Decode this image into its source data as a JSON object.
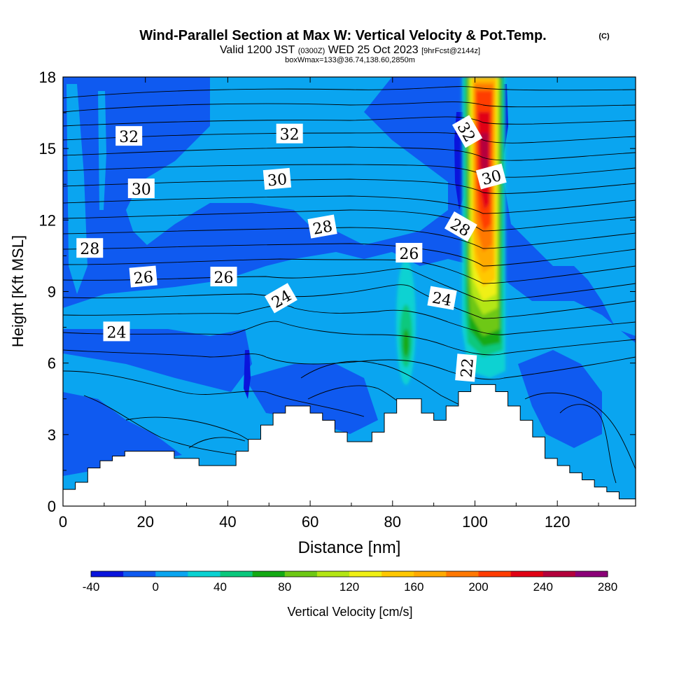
{
  "header": {
    "title": "Wind-Parallel Section at Max W: Vertical Velocity & Pot.Temp.",
    "copyright": "(C)",
    "valid_prefix": "Valid 1200 JST",
    "valid_utc": "(0300Z)",
    "valid_date": "WED 25 Oct 2023",
    "forecast": "[9hrFcst@2144z]",
    "box_info": "boxWmax=133@36.74,138.60,2850m"
  },
  "chart_data": {
    "type": "heatmap",
    "title": "Wind-Parallel Section at Max W: Vertical Velocity & Pot.Temp.",
    "xlabel": "Distance [nm]",
    "ylabel": "Height [Kft MSL]",
    "xlim": [
      0,
      139
    ],
    "ylim": [
      0,
      18
    ],
    "xticks": [
      "0",
      "20",
      "40",
      "60",
      "80",
      "100",
      "120"
    ],
    "yticks": [
      "0",
      "3",
      "6",
      "9",
      "12",
      "15",
      "18"
    ],
    "colorbar": {
      "label": "Vertical Velocity [cm/s]",
      "tick_labels": [
        "-40",
        "0",
        "40",
        "80",
        "120",
        "160",
        "200",
        "240",
        "280"
      ],
      "levels": [
        -40,
        -20,
        0,
        20,
        40,
        60,
        80,
        100,
        120,
        140,
        160,
        180,
        200,
        220,
        240,
        260,
        280
      ],
      "colors": [
        "#0a14dc",
        "#0f5af0",
        "#0aa5f0",
        "#0ad2d2",
        "#0ac87d",
        "#14aa14",
        "#6ec814",
        "#b4e614",
        "#f0f014",
        "#ffc800",
        "#ffaa00",
        "#ff7800",
        "#ff3c00",
        "#e10014",
        "#b4003c",
        "#8c0078"
      ],
      "position": "bottom"
    },
    "contour_labels": [
      {
        "x": 16,
        "y": 15.5,
        "text": "32",
        "rot": 0
      },
      {
        "x": 55,
        "y": 15.6,
        "text": "32",
        "rot": 0
      },
      {
        "x": 98,
        "y": 15.7,
        "text": "32",
        "rot": 60
      },
      {
        "x": 19,
        "y": 13.3,
        "text": "30",
        "rot": 0
      },
      {
        "x": 52,
        "y": 13.7,
        "text": "30",
        "rot": -5
      },
      {
        "x": 104,
        "y": 13.8,
        "text": "30",
        "rot": -15
      },
      {
        "x": 6.5,
        "y": 10.8,
        "text": "28",
        "rot": 0
      },
      {
        "x": 63,
        "y": 11.7,
        "text": "28",
        "rot": -10
      },
      {
        "x": 96.5,
        "y": 11.7,
        "text": "28",
        "rot": 30
      },
      {
        "x": 19.5,
        "y": 9.6,
        "text": "26",
        "rot": -5
      },
      {
        "x": 39,
        "y": 9.6,
        "text": "26",
        "rot": 0
      },
      {
        "x": 84,
        "y": 10.6,
        "text": "26",
        "rot": 0
      },
      {
        "x": 53,
        "y": 8.7,
        "text": "24",
        "rot": -30
      },
      {
        "x": 92,
        "y": 8.7,
        "text": "24",
        "rot": 10
      },
      {
        "x": 13,
        "y": 7.3,
        "text": "24",
        "rot": 0
      },
      {
        "x": 98,
        "y": 5.8,
        "text": "22",
        "rot": -85
      }
    ],
    "terrain": {
      "x": [
        0,
        3,
        6,
        9,
        12,
        15,
        18,
        21,
        24,
        27,
        30,
        33,
        36,
        39,
        42,
        45,
        48,
        51,
        54,
        57,
        60,
        63,
        66,
        69,
        72,
        75,
        78,
        81,
        84,
        87,
        90,
        93,
        96,
        99,
        102,
        105,
        108,
        111,
        114,
        117,
        120,
        123,
        126,
        129,
        132,
        135,
        139
      ],
      "height": [
        0.7,
        1.0,
        1.6,
        1.9,
        2.1,
        2.3,
        2.3,
        2.3,
        2.3,
        2.0,
        2.0,
        1.7,
        1.7,
        1.7,
        2.3,
        2.8,
        3.4,
        3.9,
        4.2,
        4.2,
        3.9,
        3.6,
        3.1,
        2.7,
        2.7,
        3.1,
        3.9,
        4.5,
        4.5,
        3.9,
        3.6,
        4.2,
        4.8,
        5.1,
        5.1,
        4.8,
        4.2,
        3.6,
        2.9,
        2.0,
        1.7,
        1.4,
        1.1,
        0.8,
        0.6,
        0.3,
        0.3
      ]
    }
  }
}
